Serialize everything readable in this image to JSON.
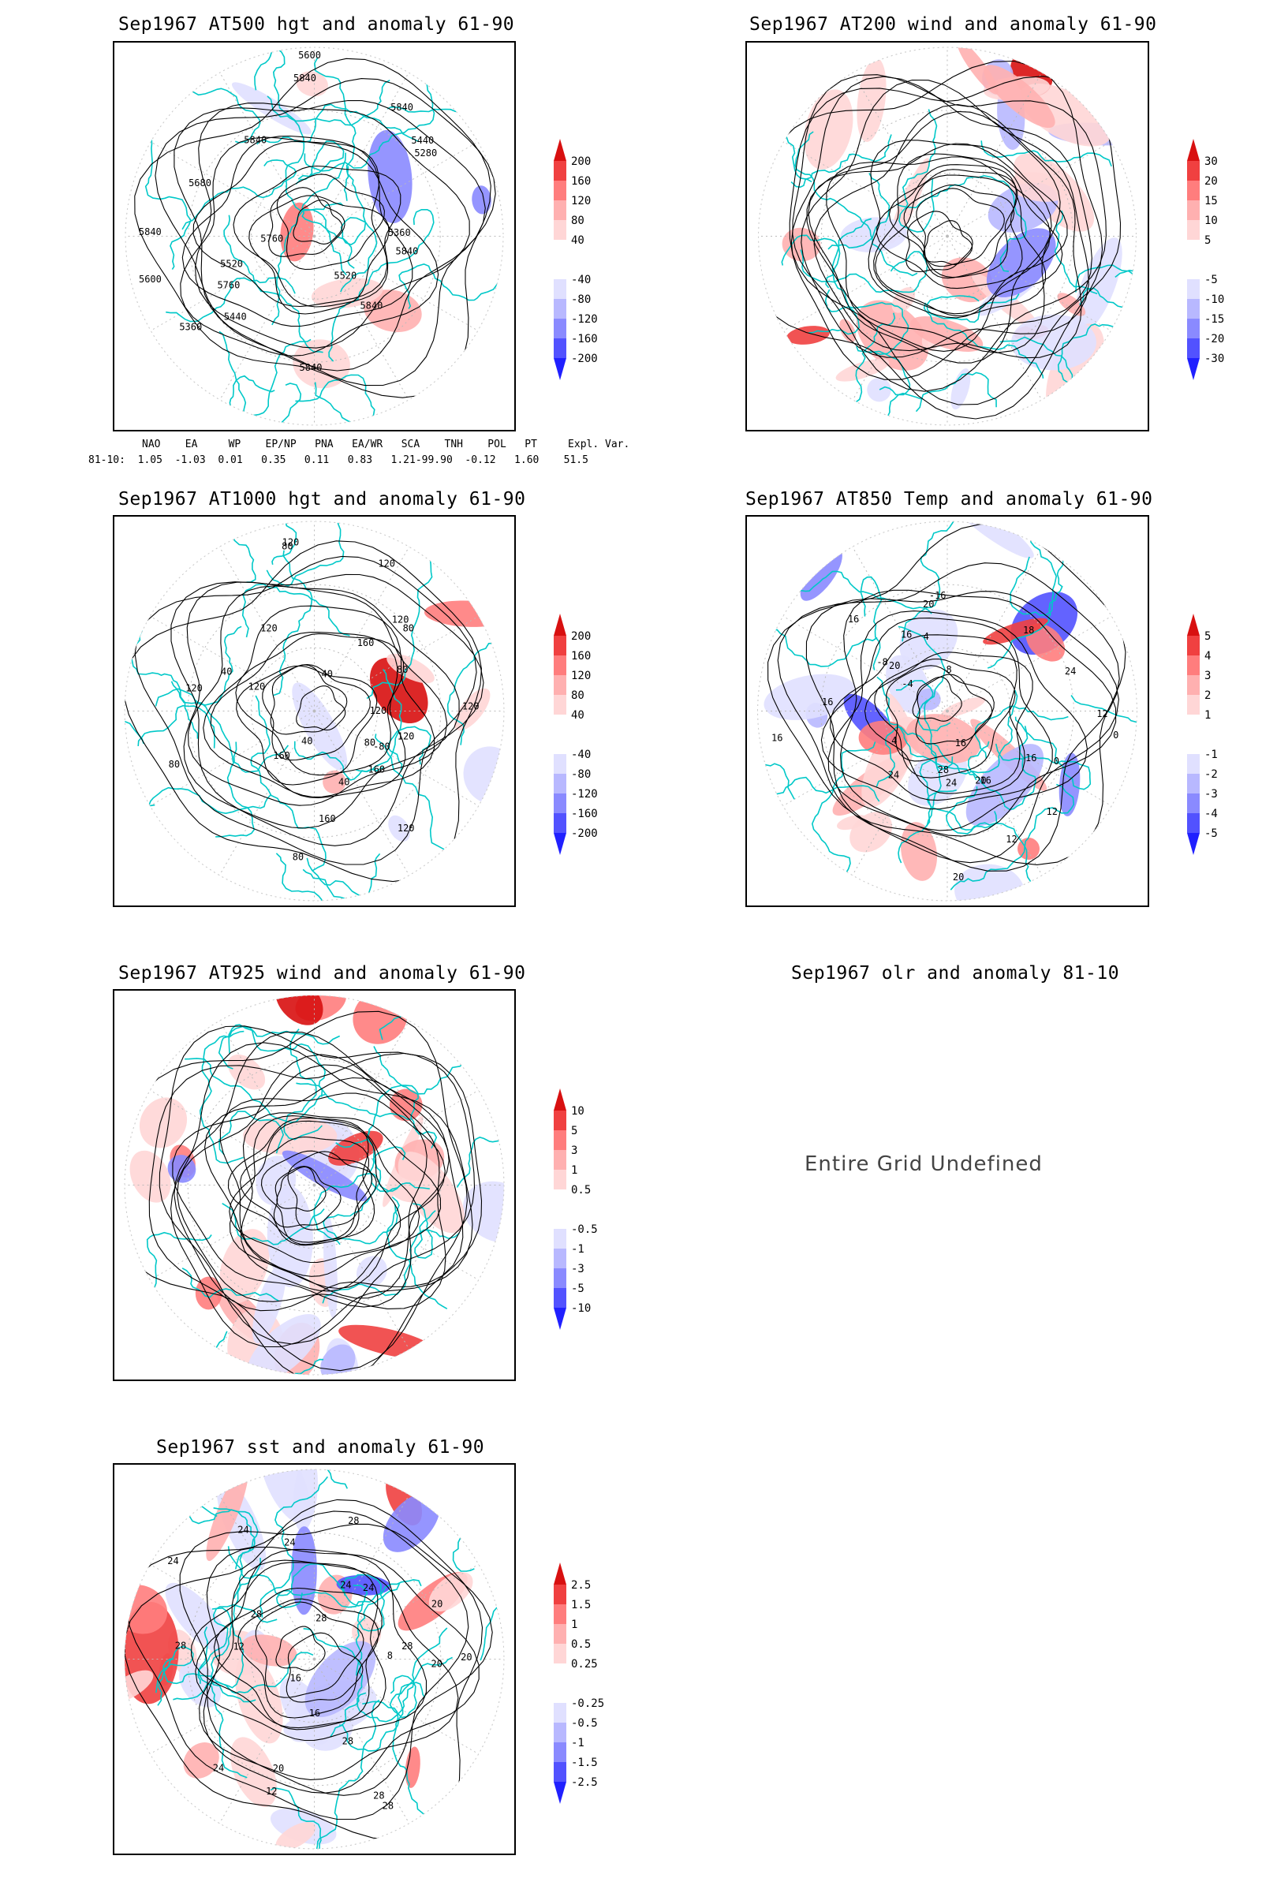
{
  "panels": [
    {
      "id": "p1",
      "title": "Sep1967 AT500 hgt and anomaly 61-90",
      "colorbar": [
        "200",
        "160",
        "120",
        "80",
        "40",
        "-40",
        "-80",
        "-120",
        "-160",
        "-200"
      ],
      "contour_labels": [
        "5840",
        "5840",
        "5840",
        "5840",
        "5760",
        "5600",
        "5520",
        "5440",
        "5360",
        "5280",
        "5360",
        "5440",
        "5600",
        "5680",
        "5840",
        "5520",
        "5760",
        "5840",
        "5840"
      ]
    },
    {
      "id": "p2",
      "title": "Sep1967 AT200 wind and anomaly 61-90",
      "colorbar": [
        "30",
        "20",
        "15",
        "10",
        "5",
        "-5",
        "-10",
        "-15",
        "-20",
        "-30"
      ]
    },
    {
      "id": "p3",
      "title": "Sep1967 AT1000 hgt and anomaly 61-90",
      "colorbar": [
        "200",
        "160",
        "120",
        "80",
        "40",
        "-40",
        "-80",
        "-120",
        "-160",
        "-200"
      ],
      "contour_labels": [
        "120",
        "160",
        "40",
        "160",
        "-80",
        "40",
        "80",
        "120",
        "80",
        "120",
        "80",
        "120",
        "40",
        "160",
        "80",
        "40",
        "120",
        "120",
        "80",
        "160",
        "120",
        "80",
        "120",
        "120",
        "120"
      ]
    },
    {
      "id": "p4",
      "title": "Sep1967 AT850 Temp and anomaly 61-90",
      "colorbar": [
        "5",
        "4",
        "3",
        "2",
        "1",
        "-1",
        "-2",
        "-3",
        "-4",
        "-5"
      ],
      "contour_labels": [
        "18",
        "12",
        "4",
        "0",
        "16",
        "20",
        "16",
        "-8",
        "-4",
        "4",
        "12",
        "0",
        "24",
        "24",
        "20",
        "16",
        "8",
        "12",
        "28",
        "16",
        "20",
        "24",
        "20",
        "16",
        "-16",
        "16",
        "16"
      ]
    },
    {
      "id": "p5",
      "title": "Sep1967 AT925 wind and anomaly 61-90",
      "colorbar": [
        "10",
        "5",
        "3",
        "1",
        "0.5",
        "-0.5",
        "-1",
        "-3",
        "-5",
        "-10"
      ]
    },
    {
      "id": "p6",
      "title": "Sep1967 olr and anomaly 81-10",
      "message": "Entire Grid Undefined"
    },
    {
      "id": "p7",
      "title": "Sep1967 sst and anomaly 61-90",
      "colorbar": [
        "2.5",
        "1.5",
        "1",
        "0.5",
        "0.25",
        "-0.25",
        "-0.5",
        "-1",
        "-1.5",
        "-2.5"
      ],
      "contour_labels": [
        "28",
        "28",
        "28",
        "24",
        "28",
        "20",
        "16",
        "12",
        "24",
        "28",
        "20",
        "8",
        "12",
        "24",
        "16",
        "20",
        "24",
        "28",
        "20",
        "28",
        "24",
        "28",
        "24"
      ]
    }
  ],
  "indices": {
    "header": "NAO    EA     WP    EP/NP   PNA   EA/WR   SCA    TNH    POL   PT     Expl. Var.",
    "values": "81-10:  1.05  -1.03  0.01   0.35   0.11   0.83   1.21-99.90  -0.12   1.60    51.5"
  },
  "colors": {
    "positive": [
      "#ffd6d6",
      "#ffb0b0",
      "#ff7d7d",
      "#f04040",
      "#d81010"
    ],
    "negative": [
      "#e0e0ff",
      "#b8b8ff",
      "#8a8aff",
      "#5252ff",
      "#2020ff"
    ],
    "land_outline": "#00c8c8",
    "contour": "#000000",
    "grid": "#bbbbbb"
  }
}
